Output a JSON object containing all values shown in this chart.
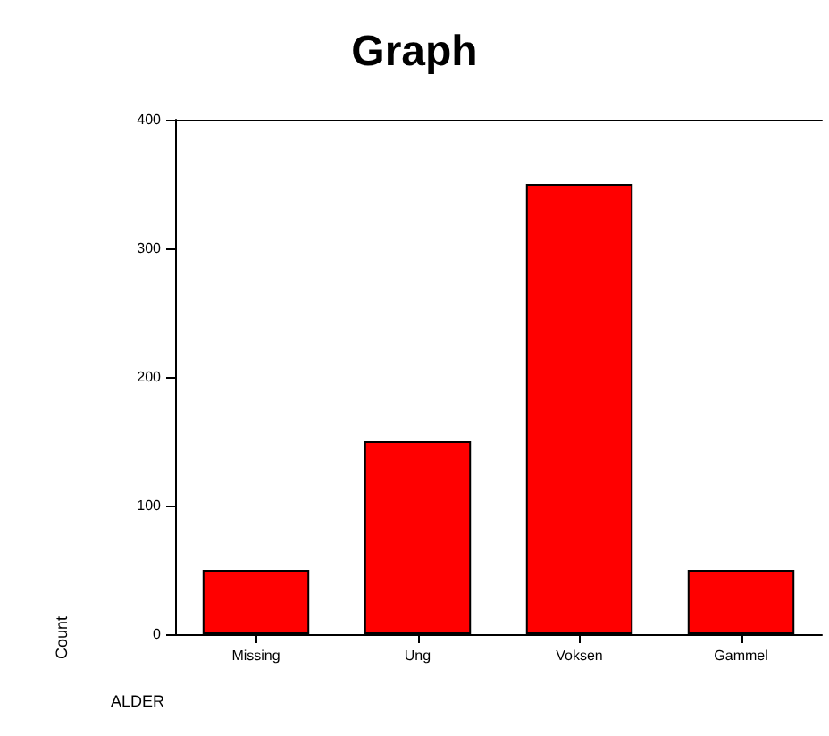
{
  "chart_data": {
    "type": "bar",
    "title": "Graph",
    "xlabel": "ALDER",
    "ylabel": "Count",
    "categories": [
      "Missing",
      "Ung",
      "Voksen",
      "Gammel"
    ],
    "values": [
      50,
      150,
      350,
      50
    ],
    "color": "#ff0000",
    "ylim": [
      0,
      400
    ],
    "yticks": [
      0,
      100,
      200,
      300,
      400
    ]
  }
}
